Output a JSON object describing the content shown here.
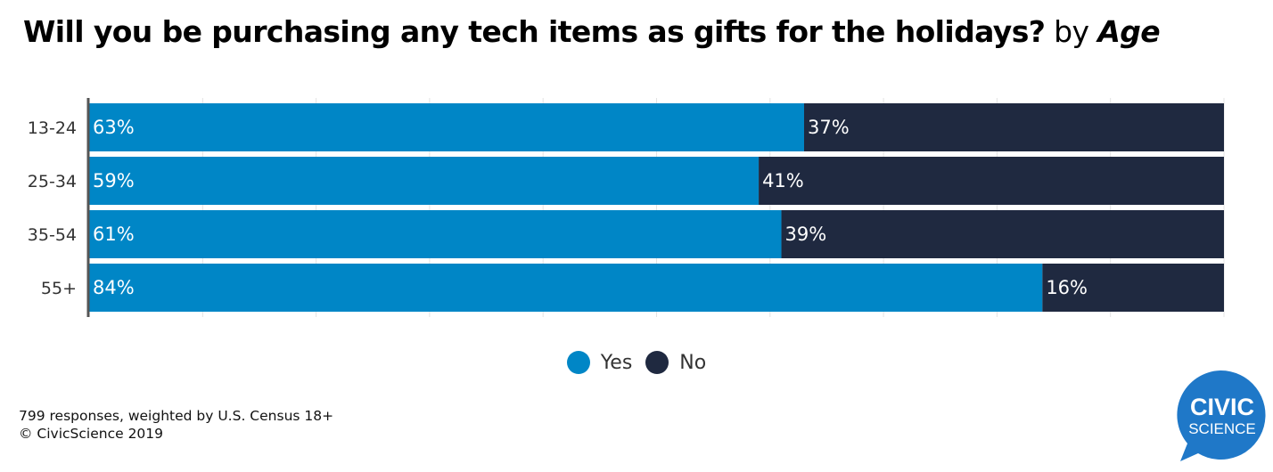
{
  "title": {
    "question": "Will you be purchasing any tech items as gifts for the holidays?",
    "by": "by",
    "dimension": "Age"
  },
  "chart_data": {
    "type": "bar",
    "orientation": "horizontal",
    "stacked": true,
    "title": "Will you be purchasing any tech items as gifts for the holidays? by Age",
    "xlabel": "",
    "ylabel": "",
    "xlim": [
      0,
      100
    ],
    "grid": true,
    "categories": [
      "13-24",
      "25-34",
      "35-54",
      "55+"
    ],
    "series": [
      {
        "name": "Yes",
        "color": "#0086c6",
        "values": [
          63,
          59,
          61,
          84
        ],
        "labels": [
          "63%",
          "59%",
          "61%",
          "84%"
        ]
      },
      {
        "name": "No",
        "color": "#1f2940",
        "values": [
          37,
          41,
          39,
          16
        ],
        "labels": [
          "37%",
          "41%",
          "39%",
          "16%"
        ]
      }
    ],
    "legend": {
      "placement": "bottom-center",
      "entries": [
        "Yes",
        "No"
      ]
    }
  },
  "footer": {
    "line1": "799 responses, weighted by U.S. Census 18+",
    "line2": "© CivicScience 2019"
  },
  "logo": {
    "line1": "CIVIC",
    "line2": "SCIENCE",
    "color": "#1f78c8"
  }
}
